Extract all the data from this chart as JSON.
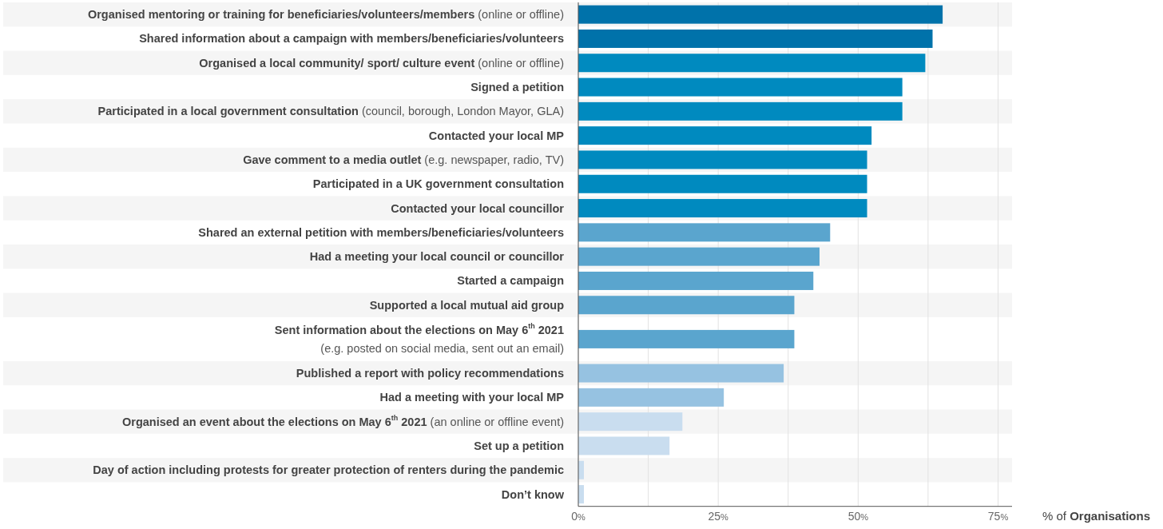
{
  "chart_data": {
    "type": "bar",
    "orientation": "horizontal",
    "xlabel": "% of Organisations",
    "categories": [
      "Organised mentoring or training for beneficiaries/volunteers/members (online or offline)",
      "Shared information about a campaign with members/beneficiaries/volunteers",
      "Organised a local community/ sport/ culture event (online or offline)",
      "Signed a petition",
      "Participated in a local government consultation (council, borough, London Mayor, GLA)",
      "Contacted your local MP",
      "Gave comment to a media outlet (e.g. newspaper, radio, TV)",
      "Participated in a UK government consultation",
      "Contacted your local councillor",
      "Shared an external petition with members/beneficiaries/volunteers",
      "Had a meeting your local council or councillor",
      "Started a campaign",
      "Supported a local mutual aid group",
      "Sent information about the elections on May 6$^{th}$ 2021\n(e.g. posted on social media, sent out an email)",
      "Published a report with policy recommendations",
      "Had a meeting with your local MP",
      "Organised an event about the elections on May 6$^{th}$ 2021 (an online or offline event)",
      "Set up a petition",
      "Day of action including protests for greater protection of renters during the pandemic",
      "Don’t know"
    ],
    "values": [
      65.1,
      63.3,
      62,
      57.9,
      57.9,
      52.4,
      51.6,
      51.6,
      51.6,
      45,
      43.1,
      42,
      38.6,
      38.6,
      36.7,
      26,
      18.6,
      16.3,
      1,
      1
    ],
    "colors": [
      "#0072aa",
      "#0072aa",
      "#008abf",
      "#008abf",
      "#008abf",
      "#008abf",
      "#008abf",
      "#008abf",
      "#008abf",
      "#5aa5ce",
      "#5aa5ce",
      "#5aa5ce",
      "#5aa5ce",
      "#5aa5ce",
      "#96c2e1",
      "#96c2e1",
      "#c9ddef",
      "#c9ddef",
      "#c9ddef",
      "#c9ddef"
    ],
    "xlim": [
      0,
      77.5
    ],
    "xticks": [
      {
        "value": 0,
        "label": "0%"
      },
      {
        "value": 12.5,
        "label": null
      },
      {
        "value": 25,
        "label": "25%"
      },
      {
        "value": 37.5,
        "label": null
      },
      {
        "value": 50,
        "label": "50%"
      },
      {
        "value": 62.5,
        "label": null
      },
      {
        "value": 75,
        "label": "75%"
      }
    ],
    "grid": "x"
  }
}
